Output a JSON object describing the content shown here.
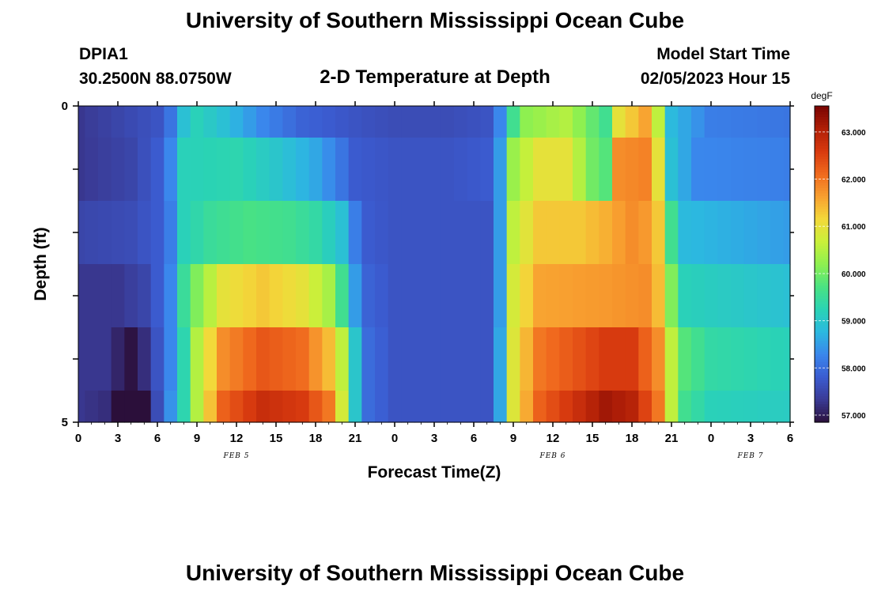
{
  "page": {
    "title": "University of Southern Mississippi Ocean Cube",
    "footer_title": "University of Southern Mississippi Ocean Cube",
    "station": "DPIA1",
    "coordinates": "30.2500N  88.0750W",
    "subtitle": "2-D Temperature at Depth",
    "model_start_label": "Model Start Time",
    "model_start_value": "02/05/2023 Hour 15"
  },
  "chart_data": {
    "type": "heatmap",
    "title": "2-D Temperature at Depth",
    "xlabel": "Forecast Time(Z)",
    "ylabel": "Depth (ft)",
    "x_hours": [
      0,
      1,
      2,
      3,
      4,
      5,
      6,
      7,
      8,
      9,
      10,
      11,
      12,
      13,
      14,
      15,
      16,
      17,
      18,
      19,
      20,
      21,
      22,
      23,
      24,
      25,
      26,
      27,
      28,
      29,
      30,
      31,
      32,
      33,
      34,
      35,
      36,
      37,
      38,
      39,
      40,
      41,
      42,
      43,
      44,
      45,
      46,
      47,
      48,
      49,
      50,
      51,
      52,
      53,
      54
    ],
    "x_tick_labels": [
      "0",
      "3",
      "6",
      "9",
      "12",
      "15",
      "18",
      "21",
      "0",
      "3",
      "6",
      "9",
      "12",
      "15",
      "18",
      "21",
      "0",
      "3",
      "6"
    ],
    "date_labels": [
      {
        "text": "FEB 5",
        "at_hour": 12
      },
      {
        "text": "FEB 6",
        "at_hour": 36
      },
      {
        "text": "FEB 7",
        "at_hour": 51
      }
    ],
    "y_tick_labels": [
      "0",
      "5"
    ],
    "ylim": [
      5,
      0
    ],
    "depth_bands": [
      {
        "from": 0,
        "to": 0.5
      },
      {
        "from": 0.5,
        "to": 1.5
      },
      {
        "from": 1.5,
        "to": 2.5
      },
      {
        "from": 2.5,
        "to": 3.5
      },
      {
        "from": 3.5,
        "to": 4.5
      },
      {
        "from": 4.5,
        "to": 5
      }
    ],
    "temperature_anchors_degF": [
      [
        [
          0,
          57.3
        ],
        [
          3,
          57.5
        ],
        [
          6,
          57.7
        ],
        [
          7,
          58.1
        ],
        [
          8,
          58.9
        ],
        [
          9,
          59.2
        ],
        [
          11,
          58.9
        ],
        [
          14,
          58.3
        ],
        [
          17,
          57.9
        ],
        [
          21,
          57.7
        ],
        [
          24,
          57.6
        ],
        [
          28,
          57.6
        ],
        [
          31,
          57.7
        ],
        [
          32,
          58.3
        ],
        [
          33,
          59.6
        ],
        [
          34,
          60.2
        ],
        [
          37,
          60.5
        ],
        [
          40,
          59.6
        ],
        [
          41,
          61.0
        ],
        [
          43,
          61.6
        ],
        [
          44,
          60.6
        ],
        [
          45,
          58.8
        ],
        [
          48,
          58.2
        ],
        [
          54,
          58.1
        ]
      ],
      [
        [
          0,
          57.3
        ],
        [
          4,
          57.5
        ],
        [
          6,
          57.8
        ],
        [
          7,
          58.3
        ],
        [
          8,
          59.2
        ],
        [
          12,
          59.3
        ],
        [
          15,
          59.0
        ],
        [
          18,
          58.6
        ],
        [
          20,
          58.1
        ],
        [
          21,
          57.8
        ],
        [
          24,
          57.7
        ],
        [
          28,
          57.7
        ],
        [
          31,
          57.8
        ],
        [
          32,
          58.5
        ],
        [
          33,
          60.3
        ],
        [
          35,
          61.0
        ],
        [
          37,
          61.0
        ],
        [
          39,
          60.0
        ],
        [
          40,
          59.8
        ],
        [
          41,
          61.8
        ],
        [
          43,
          61.9
        ],
        [
          44,
          61.0
        ],
        [
          45,
          58.9
        ],
        [
          47,
          58.3
        ],
        [
          54,
          58.2
        ]
      ],
      [
        [
          0,
          57.5
        ],
        [
          4,
          57.6
        ],
        [
          6,
          57.8
        ],
        [
          7,
          58.2
        ],
        [
          8,
          59.2
        ],
        [
          10,
          59.5
        ],
        [
          13,
          59.7
        ],
        [
          16,
          59.6
        ],
        [
          18,
          59.4
        ],
        [
          20,
          58.9
        ],
        [
          21,
          58.2
        ],
        [
          22,
          57.8
        ],
        [
          24,
          57.7
        ],
        [
          31,
          57.7
        ],
        [
          32,
          58.5
        ],
        [
          33,
          60.6
        ],
        [
          35,
          61.3
        ],
        [
          38,
          61.3
        ],
        [
          40,
          61.5
        ],
        [
          42,
          61.8
        ],
        [
          43,
          61.7
        ],
        [
          44,
          61.3
        ],
        [
          45,
          59.6
        ],
        [
          46,
          58.8
        ],
        [
          54,
          58.5
        ]
      ],
      [
        [
          0,
          57.3
        ],
        [
          3,
          57.3
        ],
        [
          5,
          57.5
        ],
        [
          6,
          57.8
        ],
        [
          7,
          58.3
        ],
        [
          8,
          59.5
        ],
        [
          9,
          60.1
        ],
        [
          11,
          61.0
        ],
        [
          14,
          61.3
        ],
        [
          17,
          61.0
        ],
        [
          19,
          60.4
        ],
        [
          20,
          59.6
        ],
        [
          21,
          58.5
        ],
        [
          22,
          57.9
        ],
        [
          24,
          57.7
        ],
        [
          31,
          57.7
        ],
        [
          32,
          58.5
        ],
        [
          33,
          60.8
        ],
        [
          35,
          61.6
        ],
        [
          40,
          61.7
        ],
        [
          43,
          61.8
        ],
        [
          44,
          61.4
        ],
        [
          45,
          60.1
        ],
        [
          46,
          59.2
        ],
        [
          54,
          58.9
        ]
      ],
      [
        [
          0,
          57.3
        ],
        [
          2,
          57.3
        ],
        [
          3,
          57.1
        ],
        [
          4,
          56.9
        ],
        [
          5,
          57.2
        ],
        [
          6,
          57.7
        ],
        [
          7,
          58.3
        ],
        [
          8,
          59.3
        ],
        [
          9,
          60.5
        ],
        [
          11,
          61.8
        ],
        [
          14,
          62.3
        ],
        [
          17,
          62.1
        ],
        [
          19,
          61.4
        ],
        [
          20,
          60.6
        ],
        [
          21,
          59.0
        ],
        [
          22,
          58.0
        ],
        [
          24,
          57.7
        ],
        [
          31,
          57.7
        ],
        [
          32,
          58.6
        ],
        [
          33,
          60.9
        ],
        [
          35,
          62.0
        ],
        [
          40,
          62.6
        ],
        [
          42,
          62.6
        ],
        [
          44,
          61.8
        ],
        [
          45,
          60.6
        ],
        [
          46,
          59.8
        ],
        [
          48,
          59.4
        ],
        [
          54,
          59.2
        ]
      ],
      [
        [
          0,
          57.3
        ],
        [
          2,
          57.2
        ],
        [
          3,
          56.3
        ],
        [
          4,
          55.8
        ],
        [
          5,
          56.3
        ],
        [
          6,
          57.6
        ],
        [
          7,
          58.4
        ],
        [
          8,
          59.3
        ],
        [
          9,
          60.5
        ],
        [
          11,
          62.2
        ],
        [
          14,
          62.8
        ],
        [
          17,
          62.6
        ],
        [
          19,
          62.0
        ],
        [
          20,
          60.8
        ],
        [
          21,
          59.0
        ],
        [
          22,
          58.0
        ],
        [
          24,
          57.7
        ],
        [
          31,
          57.7
        ],
        [
          32,
          58.6
        ],
        [
          33,
          60.9
        ],
        [
          35,
          62.2
        ],
        [
          40,
          63.2
        ],
        [
          42,
          63.0
        ],
        [
          44,
          62.0
        ],
        [
          45,
          60.6
        ],
        [
          46,
          59.6
        ],
        [
          48,
          59.2
        ],
        [
          54,
          59.1
        ]
      ]
    ],
    "colorbar": {
      "unit": "degF",
      "ticks": [
        "57.000",
        "58.000",
        "59.000",
        "60.000",
        "61.000",
        "62.000",
        "63.000"
      ],
      "range": [
        56.85,
        63.55
      ]
    },
    "colormap": [
      "#2b0f3a",
      "#3a3a94",
      "#3b5bd0",
      "#3a86ec",
      "#2cb8e0",
      "#2ad3b5",
      "#49e283",
      "#8ef050",
      "#c9f03a",
      "#f3d93a",
      "#f8a030",
      "#f06a1e",
      "#d83a0f",
      "#b01f07",
      "#7a0402"
    ],
    "grid": false,
    "legend": "colorbar-right"
  }
}
